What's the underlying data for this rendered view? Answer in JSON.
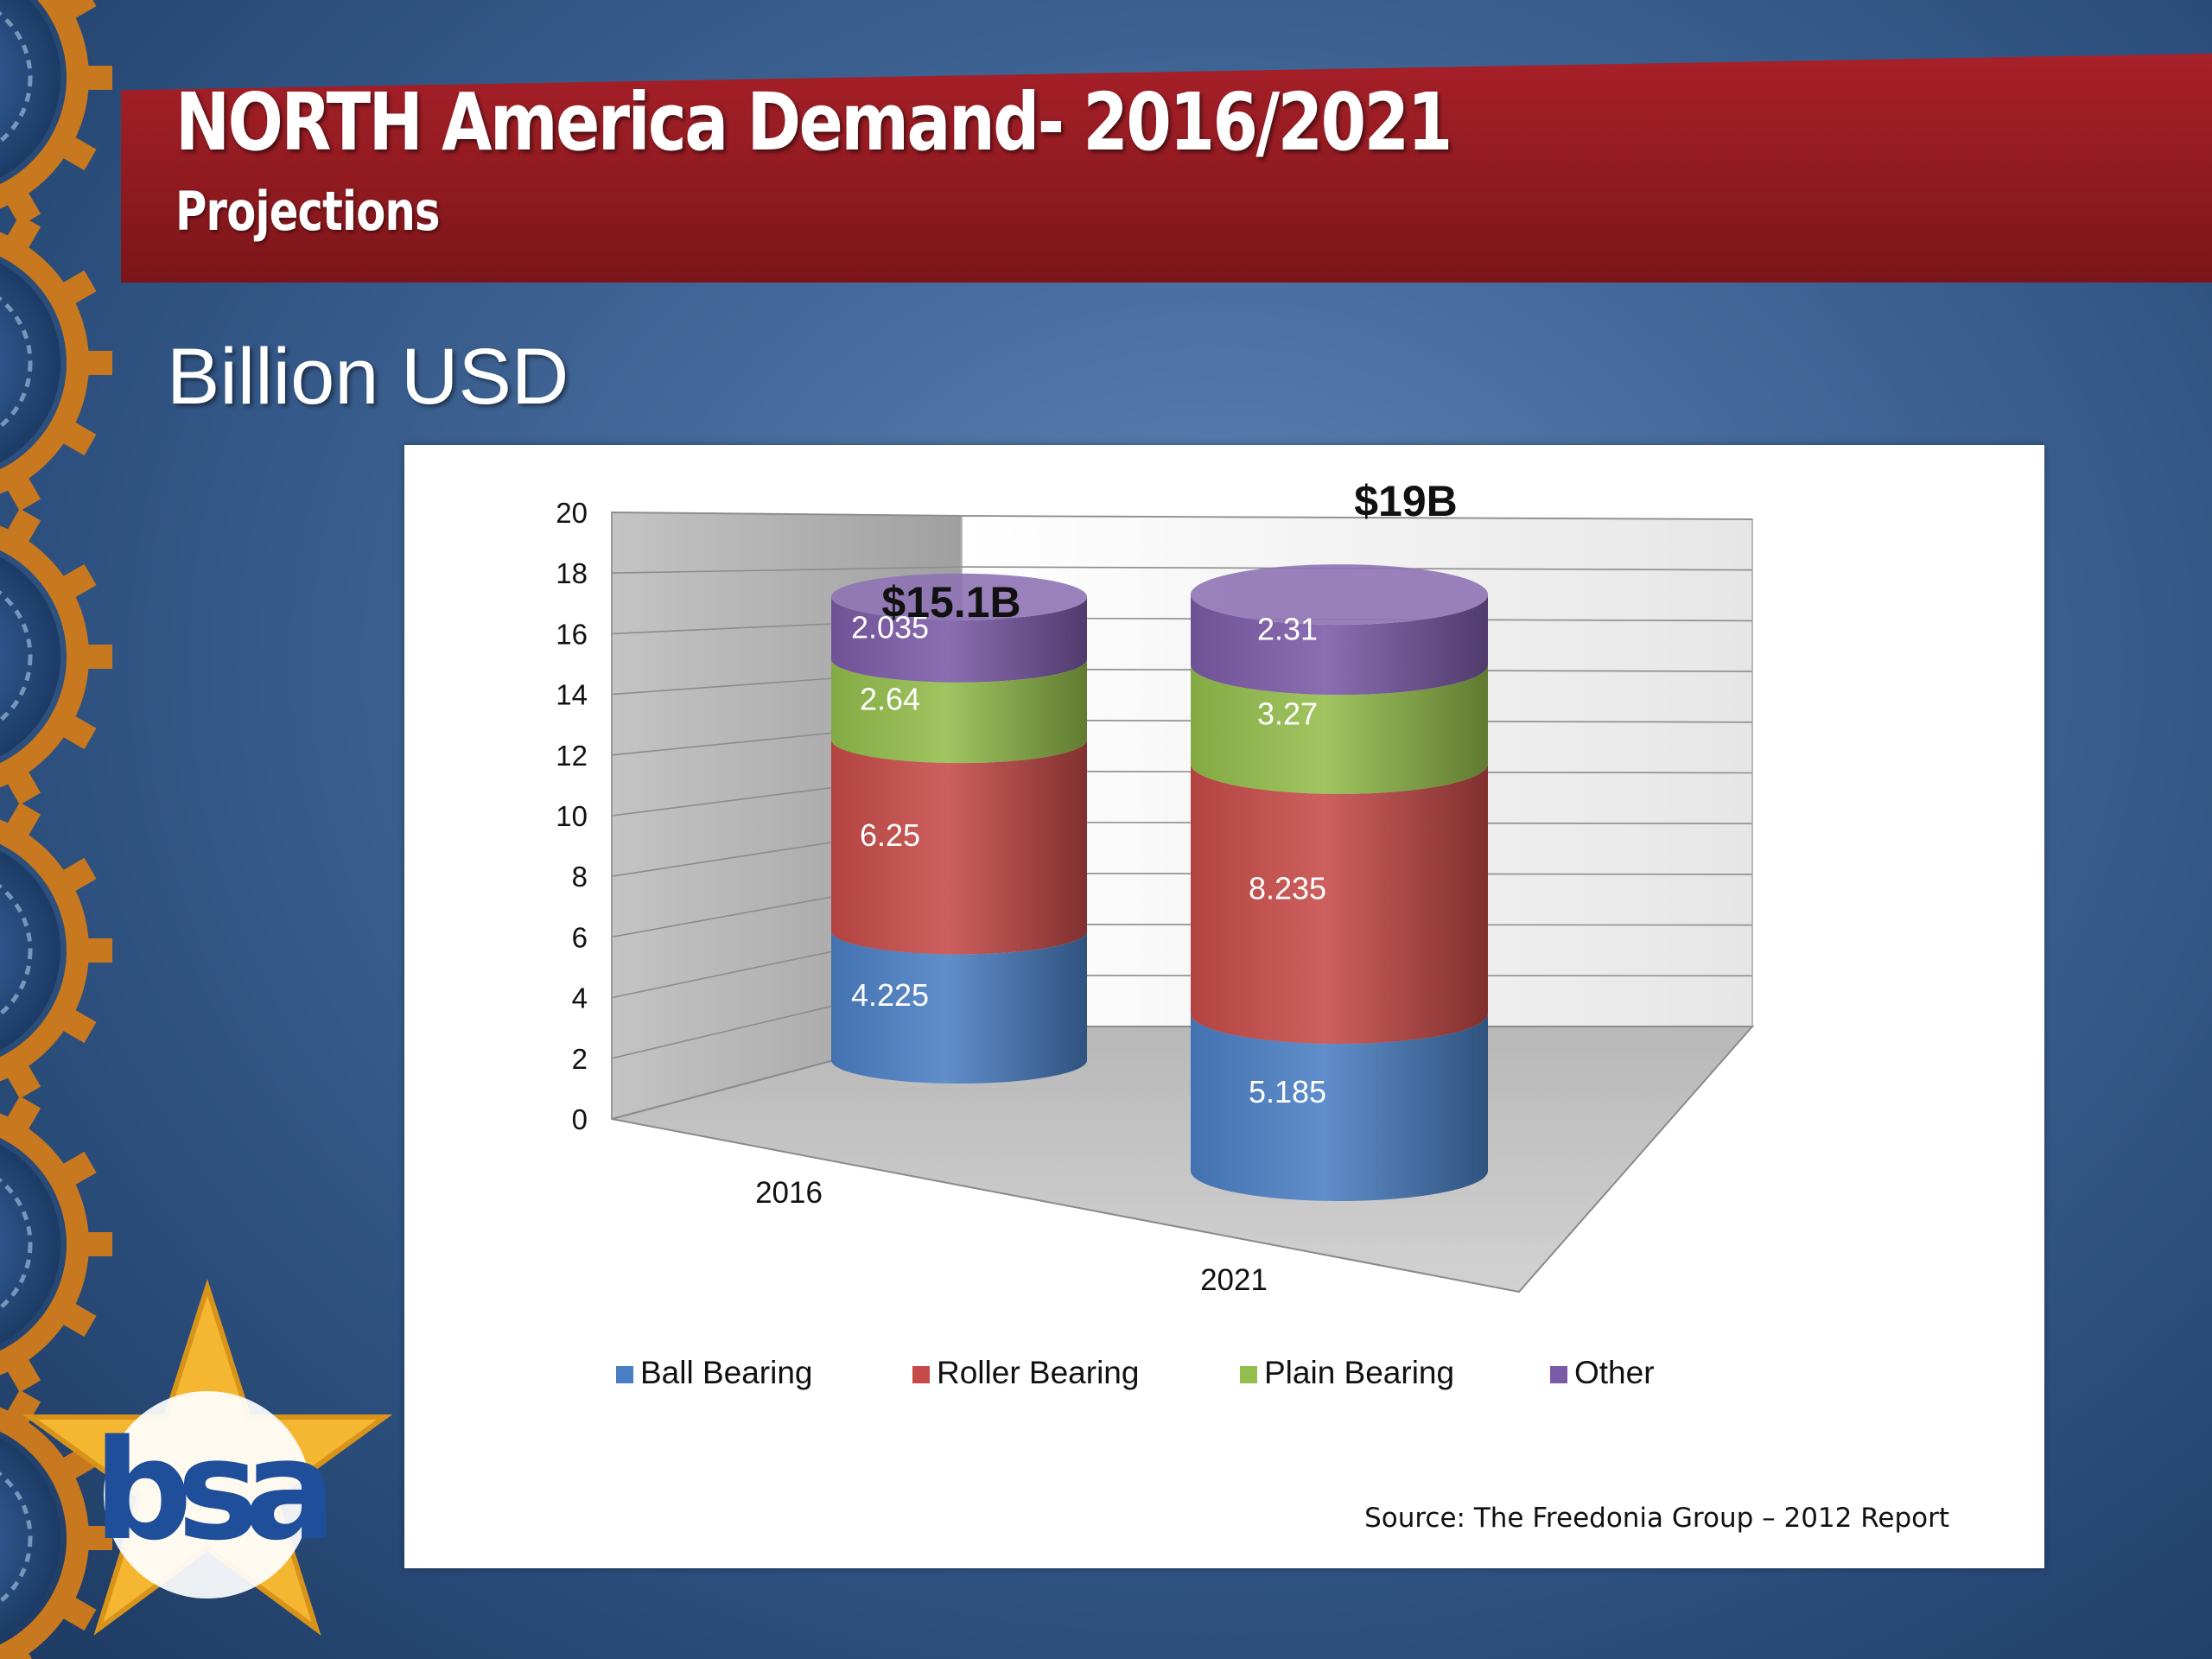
{
  "slide": {
    "title": "NORTH America Demand- 2016/2021",
    "subtitle": "Projections",
    "heading": "Billion USD",
    "source": "Source: The Freedonia Group –  2012 Report",
    "logo_text": "bsa"
  },
  "colors": {
    "banner": "#8e1a1f",
    "background": "#43699a",
    "gear": "#c8781e"
  },
  "chart_data": {
    "type": "bar",
    "style": "3d stacked cylinder",
    "categories": [
      "2016",
      "2021"
    ],
    "series": [
      {
        "name": "Ball Bearing",
        "values": [
          4.225,
          5.185
        ],
        "labels": [
          "4.225",
          "5.185"
        ],
        "color": "#4a7fc4"
      },
      {
        "name": "Roller Bearing",
        "values": [
          6.25,
          8.235
        ],
        "labels": [
          "6.25",
          "8.235"
        ],
        "color": "#c64a48"
      },
      {
        "name": "Plain Bearing",
        "values": [
          2.64,
          3.27
        ],
        "labels": [
          "2.64",
          "3.27"
        ],
        "color": "#93bd4c"
      },
      {
        "name": "Other",
        "values": [
          2.035,
          2.31
        ],
        "labels": [
          "2.035",
          "2.31"
        ],
        "color": "#7b5aa7"
      }
    ],
    "totals": [
      "$15.1B",
      "$19B"
    ],
    "ylim": [
      0,
      20
    ],
    "yticks": [
      0,
      2,
      4,
      6,
      8,
      10,
      12,
      14,
      16,
      18,
      20
    ],
    "grid": true,
    "legend": "bottom"
  }
}
